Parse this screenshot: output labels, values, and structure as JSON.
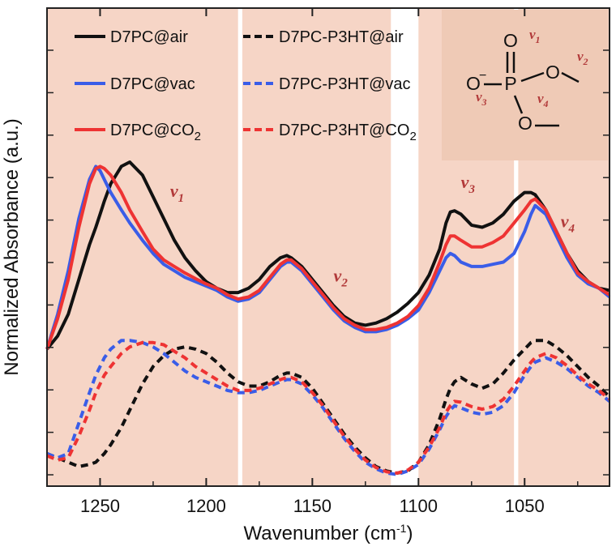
{
  "chart_data": {
    "type": "line",
    "title": "",
    "xlabel": "Wavenumber (cm",
    "xlabel_sup": "-1",
    "xlabel_close": ")",
    "ylabel": "Normalized Absorbance (a.u.)",
    "xlim": [
      1275,
      1010
    ],
    "ylim": [
      0,
      1
    ],
    "x_ticks": [
      1250,
      1200,
      1150,
      1100,
      1050
    ],
    "x_tick_labels": [
      "1250",
      "1200",
      "1150",
      "1100",
      "1050"
    ],
    "grid": false,
    "legend_position": "top-left",
    "shaded_regions": [
      {
        "from": 1275,
        "to": 1185,
        "color": "#f6d5c6"
      },
      {
        "from": 1183,
        "to": 1113,
        "color": "#f6d5c6"
      },
      {
        "from": 1100,
        "to": 1055,
        "color": "#f6d5c6"
      },
      {
        "from": 1053,
        "to": 1010,
        "color": "#f6d5c6"
      }
    ],
    "annotations": [
      {
        "text": "v",
        "sub": "1",
        "x": 1217,
        "y": 0.65
      },
      {
        "text": "v",
        "sub": "2",
        "x": 1140,
        "y": 0.455
      },
      {
        "text": "v",
        "sub": "3",
        "x": 1080,
        "y": 0.67
      },
      {
        "text": "v",
        "sub": "4",
        "x": 1033,
        "y": 0.58
      }
    ],
    "x": [
      1275,
      1270,
      1265,
      1260,
      1255,
      1252,
      1250,
      1248,
      1245,
      1240,
      1236,
      1230,
      1225,
      1220,
      1215,
      1210,
      1205,
      1200,
      1195,
      1190,
      1185,
      1180,
      1175,
      1170,
      1165,
      1162,
      1160,
      1155,
      1150,
      1145,
      1140,
      1135,
      1130,
      1125,
      1120,
      1115,
      1110,
      1105,
      1100,
      1095,
      1090,
      1087,
      1085,
      1083,
      1080,
      1075,
      1070,
      1065,
      1060,
      1055,
      1050,
      1047,
      1045,
      1040,
      1035,
      1030,
      1025,
      1020,
      1015,
      1010
    ],
    "series": [
      {
        "name": "D7PC@air",
        "color": "#111111",
        "dash": "solid",
        "values": [
          0.3,
          0.33,
          0.38,
          0.46,
          0.54,
          0.58,
          0.61,
          0.64,
          0.68,
          0.72,
          0.73,
          0.7,
          0.65,
          0.6,
          0.55,
          0.51,
          0.48,
          0.455,
          0.44,
          0.43,
          0.43,
          0.44,
          0.46,
          0.49,
          0.51,
          0.515,
          0.51,
          0.49,
          0.46,
          0.43,
          0.4,
          0.375,
          0.36,
          0.355,
          0.36,
          0.37,
          0.385,
          0.405,
          0.43,
          0.47,
          0.53,
          0.59,
          0.615,
          0.618,
          0.61,
          0.585,
          0.58,
          0.59,
          0.61,
          0.64,
          0.66,
          0.66,
          0.655,
          0.62,
          0.57,
          0.52,
          0.48,
          0.455,
          0.44,
          0.435
        ]
      },
      {
        "name": "D7PC@vac",
        "color": "#3a5de8",
        "dash": "solid",
        "values": [
          0.3,
          0.38,
          0.48,
          0.6,
          0.69,
          0.72,
          0.71,
          0.69,
          0.66,
          0.62,
          0.59,
          0.55,
          0.52,
          0.495,
          0.48,
          0.465,
          0.455,
          0.445,
          0.435,
          0.42,
          0.41,
          0.415,
          0.43,
          0.46,
          0.49,
          0.5,
          0.5,
          0.48,
          0.45,
          0.42,
          0.39,
          0.365,
          0.35,
          0.34,
          0.34,
          0.345,
          0.355,
          0.37,
          0.39,
          0.43,
          0.48,
          0.51,
          0.52,
          0.515,
          0.5,
          0.49,
          0.49,
          0.495,
          0.5,
          0.52,
          0.57,
          0.61,
          0.63,
          0.61,
          0.56,
          0.51,
          0.47,
          0.45,
          0.44,
          0.42
        ]
      },
      {
        "name": "D7PC@CO₂",
        "color": "#ee3333",
        "dash": "solid",
        "values": [
          0.3,
          0.37,
          0.46,
          0.58,
          0.68,
          0.715,
          0.72,
          0.715,
          0.7,
          0.66,
          0.62,
          0.57,
          0.53,
          0.505,
          0.49,
          0.475,
          0.462,
          0.45,
          0.44,
          0.425,
          0.415,
          0.42,
          0.435,
          0.465,
          0.495,
          0.505,
          0.505,
          0.485,
          0.455,
          0.425,
          0.395,
          0.37,
          0.355,
          0.345,
          0.345,
          0.35,
          0.36,
          0.375,
          0.4,
          0.44,
          0.5,
          0.54,
          0.56,
          0.56,
          0.55,
          0.535,
          0.535,
          0.545,
          0.56,
          0.59,
          0.62,
          0.64,
          0.645,
          0.62,
          0.57,
          0.52,
          0.475,
          0.455,
          0.44,
          0.425
        ]
      },
      {
        "name": "D7PC-P3HT@air",
        "color": "#111111",
        "dash": "dashed",
        "values": [
          0.06,
          0.05,
          0.04,
          0.03,
          0.035,
          0.04,
          0.05,
          0.06,
          0.08,
          0.12,
          0.16,
          0.22,
          0.26,
          0.285,
          0.3,
          0.305,
          0.3,
          0.29,
          0.27,
          0.245,
          0.225,
          0.215,
          0.215,
          0.225,
          0.24,
          0.245,
          0.245,
          0.235,
          0.21,
          0.175,
          0.14,
          0.105,
          0.075,
          0.05,
          0.03,
          0.02,
          0.015,
          0.02,
          0.04,
          0.08,
          0.14,
          0.185,
          0.21,
          0.225,
          0.235,
          0.22,
          0.21,
          0.22,
          0.245,
          0.275,
          0.3,
          0.315,
          0.32,
          0.32,
          0.305,
          0.285,
          0.26,
          0.235,
          0.215,
          0.19
        ]
      },
      {
        "name": "D7PC-P3HT@vac",
        "color": "#3a5de8",
        "dash": "dashed",
        "values": [
          0.06,
          0.05,
          0.06,
          0.13,
          0.2,
          0.24,
          0.26,
          0.28,
          0.3,
          0.32,
          0.32,
          0.315,
          0.305,
          0.29,
          0.27,
          0.25,
          0.235,
          0.225,
          0.215,
          0.205,
          0.2,
          0.2,
          0.205,
          0.215,
          0.225,
          0.23,
          0.23,
          0.22,
          0.195,
          0.165,
          0.13,
          0.095,
          0.065,
          0.04,
          0.025,
          0.015,
          0.012,
          0.02,
          0.035,
          0.07,
          0.115,
          0.145,
          0.16,
          0.17,
          0.165,
          0.155,
          0.15,
          0.155,
          0.17,
          0.2,
          0.24,
          0.26,
          0.27,
          0.28,
          0.27,
          0.255,
          0.235,
          0.215,
          0.2,
          0.18
        ]
      },
      {
        "name": "D7PC-P3HT@CO₂",
        "color": "#ee3333",
        "dash": "dashed",
        "values": [
          0.055,
          0.045,
          0.05,
          0.1,
          0.16,
          0.2,
          0.22,
          0.24,
          0.26,
          0.29,
          0.305,
          0.315,
          0.315,
          0.31,
          0.295,
          0.28,
          0.26,
          0.245,
          0.23,
          0.215,
          0.205,
          0.205,
          0.21,
          0.22,
          0.23,
          0.235,
          0.235,
          0.225,
          0.2,
          0.17,
          0.135,
          0.1,
          0.07,
          0.045,
          0.028,
          0.018,
          0.015,
          0.022,
          0.04,
          0.075,
          0.12,
          0.155,
          0.17,
          0.18,
          0.178,
          0.168,
          0.162,
          0.168,
          0.185,
          0.215,
          0.25,
          0.27,
          0.28,
          0.29,
          0.28,
          0.262,
          0.24,
          0.22,
          0.205,
          0.185
        ]
      }
    ],
    "legend": [
      {
        "label": "D7PC@air",
        "color": "#111111",
        "dash": "solid",
        "col": 0,
        "row": 0
      },
      {
        "label": "D7PC@vac",
        "color": "#3a5de8",
        "dash": "solid",
        "col": 0,
        "row": 1
      },
      {
        "label": "D7PC@CO",
        "sub": "2",
        "color": "#ee3333",
        "dash": "solid",
        "col": 0,
        "row": 2
      },
      {
        "label": "D7PC-P3HT@air",
        "color": "#111111",
        "dash": "dashed",
        "col": 1,
        "row": 0
      },
      {
        "label": "D7PC-P3HT@vac",
        "color": "#3a5de8",
        "dash": "dashed",
        "col": 1,
        "row": 1
      },
      {
        "label": "D7PC-P3HT@CO",
        "sub": "2",
        "color": "#ee3333",
        "dash": "dashed",
        "col": 1,
        "row": 2
      }
    ],
    "molecule": {
      "atom_P": "P",
      "atom_O_top": "O",
      "atom_O_left": "O",
      "charge": "−",
      "atom_O_right": "O",
      "atom_O_bottom": "O",
      "peak_labels": [
        {
          "text": "v",
          "sub": "1"
        },
        {
          "text": "v",
          "sub": "2"
        },
        {
          "text": "v",
          "sub": "3"
        },
        {
          "text": "v",
          "sub": "4"
        }
      ]
    }
  }
}
